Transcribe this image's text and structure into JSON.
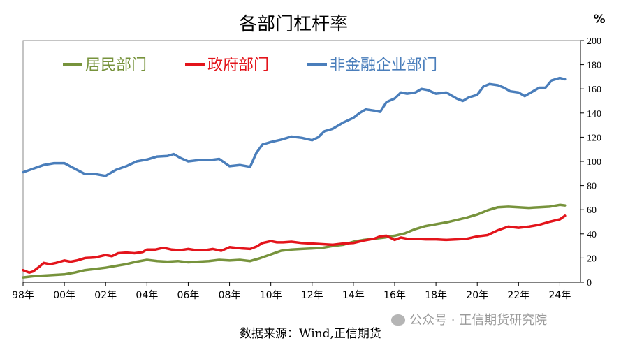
{
  "chart_data": {
    "type": "line",
    "title": "各部门杠杆率",
    "y_unit_label": "%",
    "ylim": [
      0,
      200
    ],
    "yticks": [
      0,
      20,
      40,
      60,
      80,
      100,
      120,
      140,
      160,
      180,
      200
    ],
    "y_axis_side": "right",
    "xlim": [
      1998,
      2025
    ],
    "xtick_values": [
      1998,
      2000,
      2002,
      2004,
      2006,
      2008,
      2010,
      2012,
      2014,
      2016,
      2018,
      2020,
      2022,
      2024
    ],
    "xtick_labels": [
      "98年",
      "00年",
      "02年",
      "04年",
      "06年",
      "08年",
      "10年",
      "12年",
      "14年",
      "16年",
      "18年",
      "20年",
      "22年",
      "24年"
    ],
    "grid": false,
    "legend_position": "top-left",
    "series": [
      {
        "name": "居民部门",
        "color": "#77933c",
        "x": [
          1998.0,
          1998.5,
          1999.0,
          1999.5,
          2000.0,
          2000.5,
          2001.0,
          2001.5,
          2002.0,
          2002.5,
          2003.0,
          2003.5,
          2004.0,
          2004.5,
          2005.0,
          2005.5,
          2006.0,
          2006.5,
          2007.0,
          2007.5,
          2008.0,
          2008.5,
          2009.0,
          2009.5,
          2010.0,
          2010.5,
          2011.0,
          2011.5,
          2012.0,
          2012.5,
          2013.0,
          2013.5,
          2014.0,
          2014.5,
          2015.0,
          2015.5,
          2016.0,
          2016.5,
          2017.0,
          2017.5,
          2018.0,
          2018.5,
          2019.0,
          2019.5,
          2020.0,
          2020.5,
          2021.0,
          2021.5,
          2022.0,
          2022.5,
          2023.0,
          2023.5,
          2024.0,
          2024.25
        ],
        "values": [
          4,
          5,
          5.5,
          6,
          6.5,
          8,
          10,
          11,
          12,
          13.5,
          15,
          17,
          18.5,
          17.5,
          17,
          17.5,
          16.5,
          17,
          17.5,
          18.5,
          18,
          18.5,
          17.5,
          20,
          23,
          26,
          27,
          27.5,
          28,
          28.5,
          30,
          31,
          33.5,
          35,
          36,
          37,
          38.5,
          40.5,
          44,
          46.5,
          48,
          49.5,
          51.5,
          53.5,
          56,
          59.5,
          62,
          62.5,
          62,
          61.5,
          62,
          62.5,
          64,
          63.5
        ]
      },
      {
        "name": "政府部门",
        "color": "#e3141b",
        "x": [
          1998.0,
          1998.3,
          1998.5,
          1998.8,
          1999.0,
          1999.3,
          1999.6,
          2000.0,
          2000.3,
          2000.6,
          2001.0,
          2001.5,
          2002.0,
          2002.3,
          2002.6,
          2003.0,
          2003.4,
          2003.8,
          2004.0,
          2004.4,
          2004.8,
          2005.2,
          2005.6,
          2006.0,
          2006.4,
          2006.8,
          2007.2,
          2007.6,
          2008.0,
          2008.3,
          2008.6,
          2009.0,
          2009.3,
          2009.6,
          2010.0,
          2010.3,
          2010.6,
          2011.0,
          2011.5,
          2012.0,
          2012.5,
          2013.0,
          2013.5,
          2014.0,
          2014.5,
          2015.0,
          2015.3,
          2015.6,
          2016.0,
          2016.3,
          2016.6,
          2017.0,
          2017.5,
          2018.0,
          2018.5,
          2019.0,
          2019.5,
          2020.0,
          2020.5,
          2021.0,
          2021.5,
          2022.0,
          2022.5,
          2023.0,
          2023.5,
          2024.0,
          2024.25
        ],
        "values": [
          10,
          8,
          9,
          13,
          16,
          15,
          16,
          18,
          17,
          18,
          20,
          20.5,
          22.5,
          21.5,
          24,
          24.5,
          24,
          25,
          27,
          27,
          28.5,
          27,
          26.5,
          27.5,
          26.5,
          26.5,
          27.5,
          26,
          29,
          28.5,
          28,
          27.5,
          29.5,
          32.5,
          34,
          33,
          33,
          33.5,
          32.5,
          32,
          31.5,
          31,
          32,
          32.5,
          34.5,
          36,
          38,
          38.5,
          35,
          37,
          36,
          36,
          35.5,
          35.5,
          35,
          35.5,
          36,
          38,
          39,
          43,
          46,
          45,
          46,
          47.5,
          50,
          52,
          55
        ]
      },
      {
        "name": "非金融企业部门",
        "color": "#4a7ebb",
        "x": [
          1998.0,
          1998.5,
          1999.0,
          1999.5,
          2000.0,
          2000.5,
          2001.0,
          2001.5,
          2002.0,
          2002.5,
          2003.0,
          2003.5,
          2004.0,
          2004.5,
          2005.0,
          2005.3,
          2005.6,
          2006.0,
          2006.5,
          2007.0,
          2007.5,
          2008.0,
          2008.5,
          2009.0,
          2009.3,
          2009.6,
          2010.0,
          2010.5,
          2011.0,
          2011.5,
          2012.0,
          2012.3,
          2012.6,
          2013.0,
          2013.5,
          2014.0,
          2014.3,
          2014.6,
          2015.0,
          2015.3,
          2015.6,
          2016.0,
          2016.3,
          2016.6,
          2017.0,
          2017.3,
          2017.6,
          2018.0,
          2018.5,
          2019.0,
          2019.3,
          2019.6,
          2020.0,
          2020.3,
          2020.6,
          2021.0,
          2021.3,
          2021.6,
          2022.0,
          2022.3,
          2022.6,
          2023.0,
          2023.3,
          2023.6,
          2024.0,
          2024.25
        ],
        "values": [
          91,
          94,
          97,
          98.5,
          98.5,
          94,
          89.5,
          89.5,
          88,
          93,
          96,
          100,
          101.5,
          104,
          104.5,
          106,
          103,
          100,
          101,
          101,
          102,
          96,
          97,
          95.5,
          107,
          114,
          116,
          118,
          120.5,
          119.5,
          117.5,
          120,
          125,
          127,
          132,
          136,
          140,
          143,
          142,
          141,
          149,
          152,
          157,
          156,
          157,
          160,
          159,
          156,
          157,
          152,
          150,
          153,
          155,
          162,
          164,
          163,
          161,
          158,
          157,
          154,
          157,
          161,
          161,
          167,
          169,
          168
        ]
      }
    ]
  },
  "source_text": "数据来源：Wind,正信期货",
  "watermark_text": "公众号 · 正信期货研究院"
}
